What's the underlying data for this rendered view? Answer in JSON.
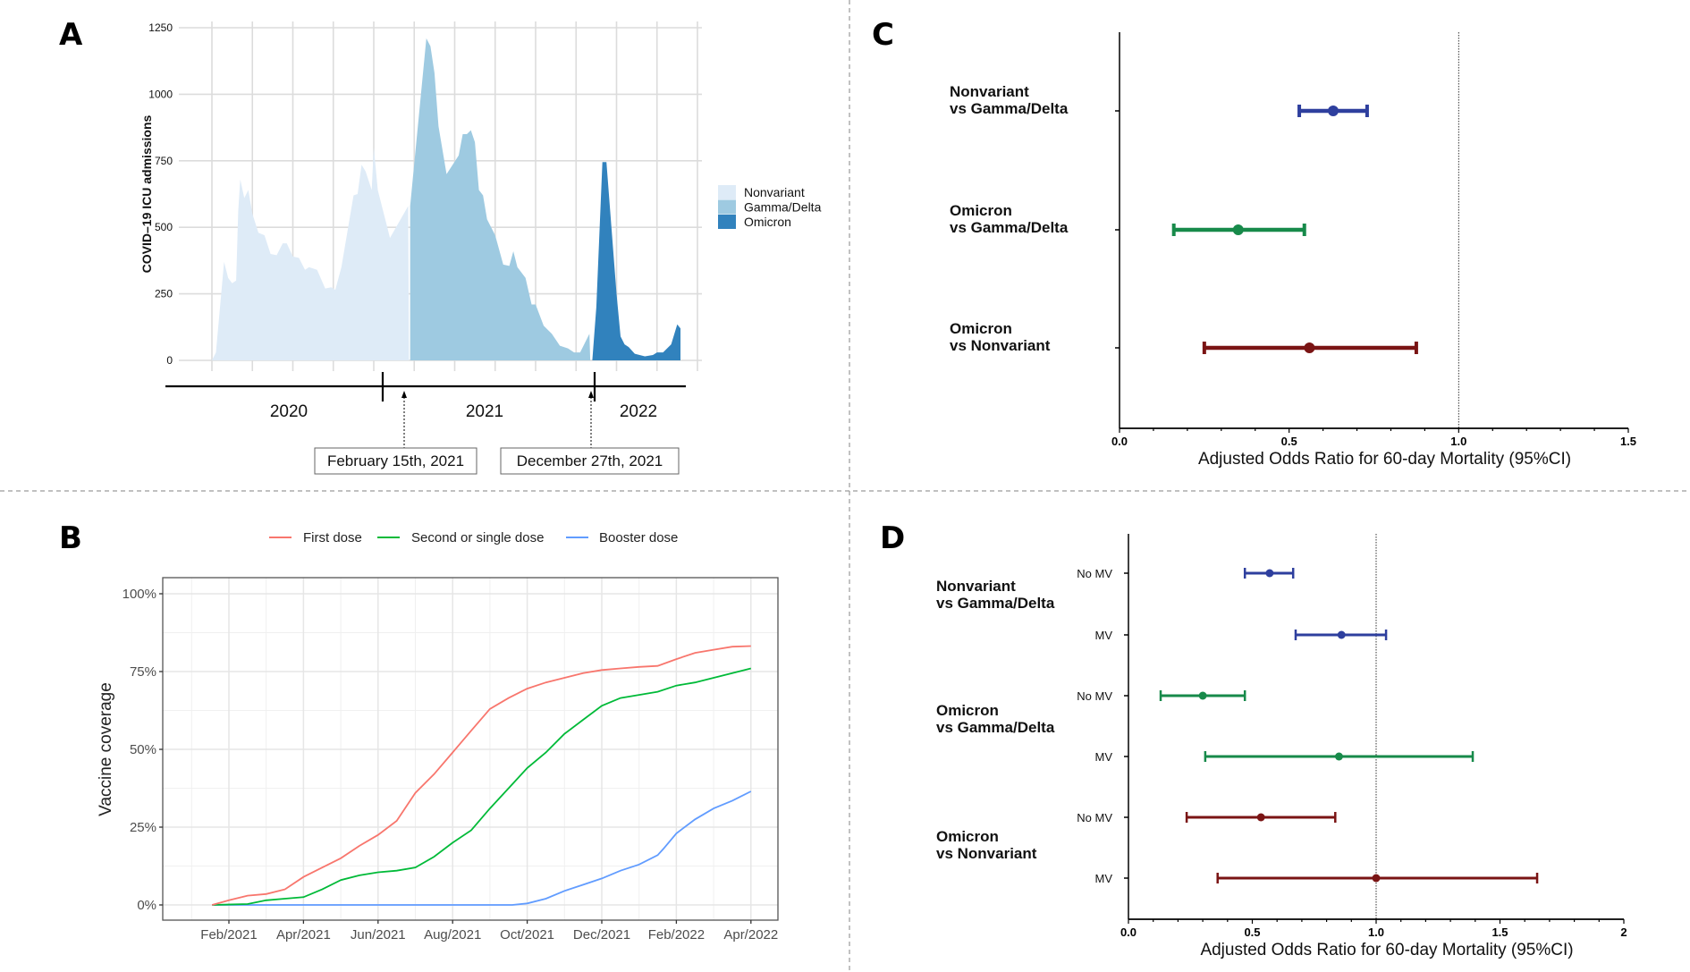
{
  "figure": {
    "dividers": {
      "color": "#9a9a9a"
    }
  },
  "chart_data": [
    {
      "panel": "A",
      "type": "area",
      "title": "",
      "xlabel": "",
      "ylabel": "COVID–19 ICU admissions",
      "ylim": [
        0,
        1250
      ],
      "yticks": [
        0,
        250,
        500,
        750,
        1000,
        1250
      ],
      "x_units": "gridline index (13 vertical gridlines, 0..12)",
      "grid": true,
      "legend_position": "right",
      "series": [
        {
          "name": "Nonvariant",
          "color": "#deebf7",
          "points": [
            [
              0,
              0
            ],
            [
              0.1,
              30
            ],
            [
              0.3,
              370
            ],
            [
              0.4,
              310
            ],
            [
              0.5,
              290
            ],
            [
              0.6,
              300
            ],
            [
              0.65,
              560
            ],
            [
              0.7,
              680
            ],
            [
              0.8,
              610
            ],
            [
              0.9,
              640
            ],
            [
              1.0,
              550
            ],
            [
              1.15,
              480
            ],
            [
              1.3,
              470
            ],
            [
              1.45,
              400
            ],
            [
              1.6,
              395
            ],
            [
              1.75,
              440
            ],
            [
              1.85,
              440
            ],
            [
              2.0,
              390
            ],
            [
              2.15,
              385
            ],
            [
              2.3,
              340
            ],
            [
              2.4,
              350
            ],
            [
              2.6,
              340
            ],
            [
              2.8,
              270
            ],
            [
              2.95,
              275
            ],
            [
              3.05,
              265
            ],
            [
              3.2,
              350
            ],
            [
              3.5,
              620
            ],
            [
              3.6,
              625
            ],
            [
              3.7,
              735
            ],
            [
              3.8,
              710
            ],
            [
              3.95,
              640
            ],
            [
              4.0,
              800
            ],
            [
              4.1,
              640
            ],
            [
              4.3,
              520
            ],
            [
              4.4,
              460
            ],
            [
              4.85,
              580
            ],
            [
              4.87,
              0
            ]
          ]
        },
        {
          "name": "Gamma/Delta",
          "color": "#9ecae1",
          "points": [
            [
              4.9,
              0
            ],
            [
              4.9,
              580
            ],
            [
              5.3,
              1210
            ],
            [
              5.4,
              1180
            ],
            [
              5.5,
              1080
            ],
            [
              5.6,
              880
            ],
            [
              5.8,
              700
            ],
            [
              6.1,
              770
            ],
            [
              6.2,
              850
            ],
            [
              6.3,
              850
            ],
            [
              6.4,
              865
            ],
            [
              6.5,
              820
            ],
            [
              6.6,
              640
            ],
            [
              6.7,
              620
            ],
            [
              6.8,
              530
            ],
            [
              7.0,
              470
            ],
            [
              7.2,
              360
            ],
            [
              7.35,
              355
            ],
            [
              7.45,
              410
            ],
            [
              7.55,
              350
            ],
            [
              7.75,
              310
            ],
            [
              7.9,
              210
            ],
            [
              8.0,
              210
            ],
            [
              8.2,
              130
            ],
            [
              8.4,
              100
            ],
            [
              8.6,
              55
            ],
            [
              8.8,
              45
            ],
            [
              8.95,
              30
            ],
            [
              9.1,
              30
            ],
            [
              9.2,
              60
            ],
            [
              9.33,
              100
            ],
            [
              9.35,
              0
            ]
          ]
        },
        {
          "name": "Omicron",
          "color": "#3182bd",
          "points": [
            [
              9.4,
              0
            ],
            [
              9.5,
              200
            ],
            [
              9.65,
              745
            ],
            [
              9.75,
              745
            ],
            [
              10.0,
              250
            ],
            [
              10.1,
              90
            ],
            [
              10.2,
              60
            ],
            [
              10.3,
              50
            ],
            [
              10.45,
              25
            ],
            [
              10.7,
              15
            ],
            [
              10.9,
              20
            ],
            [
              11.0,
              30
            ],
            [
              11.15,
              30
            ],
            [
              11.35,
              60
            ],
            [
              11.5,
              135
            ],
            [
              11.58,
              120
            ],
            [
              11.58,
              0
            ]
          ]
        }
      ],
      "timeline": {
        "years": [
          "2020",
          "2021",
          "2022"
        ],
        "annotations": [
          "February 15th, 2021",
          "December 27th, 2021"
        ]
      }
    },
    {
      "panel": "B",
      "type": "line",
      "title": "",
      "xlabel": "",
      "ylabel": "Vaccine coverage",
      "ylim": [
        0,
        100
      ],
      "yticks": [
        "0%",
        "25%",
        "50%",
        "75%",
        "100%"
      ],
      "x_tick_labels": [
        "Feb/2021",
        "Apr/2021",
        "Jun/2021",
        "Aug/2021",
        "Oct/2021",
        "Dec/2021",
        "Feb/2022",
        "Apr/2022"
      ],
      "x_units": "months since Feb/2021",
      "grid": true,
      "legend_position": "top",
      "series": [
        {
          "name": "First dose",
          "color": "#f8766d",
          "points": [
            [
              -0.45,
              0
            ],
            [
              0,
              1.5
            ],
            [
              0.5,
              3
            ],
            [
              1,
              3.5
            ],
            [
              1.5,
              5
            ],
            [
              2,
              9
            ],
            [
              2.5,
              12
            ],
            [
              3,
              15
            ],
            [
              3.5,
              19
            ],
            [
              4,
              22.5
            ],
            [
              4.5,
              27
            ],
            [
              5,
              36
            ],
            [
              5.5,
              42
            ],
            [
              6,
              49
            ],
            [
              6.5,
              56
            ],
            [
              7,
              63
            ],
            [
              7.5,
              66.5
            ],
            [
              8,
              69.5
            ],
            [
              8.5,
              71.5
            ],
            [
              9,
              73
            ],
            [
              9.5,
              74.5
            ],
            [
              10,
              75.5
            ],
            [
              10.5,
              76
            ],
            [
              11,
              76.5
            ],
            [
              11.5,
              76.8
            ],
            [
              12,
              79
            ],
            [
              12.5,
              81
            ],
            [
              13,
              82
            ],
            [
              13.5,
              83
            ],
            [
              14,
              83.2
            ]
          ]
        },
        {
          "name": "Second or single dose",
          "color": "#00ba38",
          "points": [
            [
              -0.45,
              0
            ],
            [
              0.5,
              0.3
            ],
            [
              1,
              1.5
            ],
            [
              1.5,
              2
            ],
            [
              2,
              2.5
            ],
            [
              2.5,
              5
            ],
            [
              3,
              8
            ],
            [
              3.5,
              9.5
            ],
            [
              4,
              10.5
            ],
            [
              4.5,
              11
            ],
            [
              5,
              12
            ],
            [
              5.5,
              15.5
            ],
            [
              6,
              20
            ],
            [
              6.5,
              24
            ],
            [
              7,
              31
            ],
            [
              7.5,
              37.5
            ],
            [
              8,
              44
            ],
            [
              8.5,
              49
            ],
            [
              9,
              55
            ],
            [
              9.5,
              59.5
            ],
            [
              10,
              64
            ],
            [
              10.5,
              66.5
            ],
            [
              11,
              67.5
            ],
            [
              11.5,
              68.5
            ],
            [
              12,
              70.5
            ],
            [
              12.5,
              71.5
            ],
            [
              13,
              73
            ],
            [
              13.5,
              74.5
            ],
            [
              14,
              76
            ]
          ]
        },
        {
          "name": "Booster dose",
          "color": "#619cff",
          "points": [
            [
              -0.45,
              0
            ],
            [
              7.6,
              0
            ],
            [
              8,
              0.5
            ],
            [
              8.5,
              2
            ],
            [
              9,
              4.5
            ],
            [
              9.5,
              6.5
            ],
            [
              10,
              8.5
            ],
            [
              10.5,
              11
            ],
            [
              11,
              13
            ],
            [
              11.5,
              16
            ],
            [
              11.65,
              18
            ],
            [
              12,
              23
            ],
            [
              12.5,
              27.5
            ],
            [
              13,
              31
            ],
            [
              13.5,
              33.5
            ],
            [
              14,
              36.5
            ]
          ]
        }
      ]
    },
    {
      "panel": "C",
      "type": "forest",
      "xlabel": "Adjusted Odds Ratio for 60-day Mortality (95%CI)",
      "xlim": [
        0,
        1.5
      ],
      "xticks": [
        "0.0",
        "0.5",
        "1.0",
        "1.5"
      ],
      "reference_line": 1.0,
      "rows": [
        {
          "label_line1": "Nonvariant",
          "label_line2": "vs Gamma/Delta",
          "or": 0.63,
          "low": 0.53,
          "high": 0.73,
          "color": "#2e3f9e"
        },
        {
          "label_line1": "Omicron",
          "label_line2": "vs Gamma/Delta",
          "or": 0.35,
          "low": 0.16,
          "high": 0.545,
          "color": "#178a4a"
        },
        {
          "label_line1": "Omicron",
          "label_line2": "vs Nonvariant",
          "or": 0.56,
          "low": 0.25,
          "high": 0.875,
          "color": "#7a1414"
        }
      ]
    },
    {
      "panel": "D",
      "type": "forest",
      "xlabel": "Adjusted Odds Ratio for 60-day Mortality (95%CI)",
      "xlim": [
        0,
        2
      ],
      "xticks": [
        "0.0",
        "0.5",
        "1.0",
        "1.5",
        "2"
      ],
      "reference_line": 1.0,
      "groups": [
        {
          "label_line1": "Nonvariant",
          "label_line2": "vs Gamma/Delta",
          "color": "#2e3f9e",
          "rows": [
            {
              "label": "No MV",
              "or": 0.57,
              "low": 0.47,
              "high": 0.665
            },
            {
              "label": "MV",
              "or": 0.86,
              "low": 0.675,
              "high": 1.04
            }
          ]
        },
        {
          "label_line1": "Omicron",
          "label_line2": "vs Gamma/Delta",
          "color": "#178a4a",
          "rows": [
            {
              "label": "No MV",
              "or": 0.3,
              "low": 0.13,
              "high": 0.47
            },
            {
              "label": "MV",
              "or": 0.85,
              "low": 0.31,
              "high": 1.39
            }
          ]
        },
        {
          "label_line1": "Omicron",
          "label_line2": "vs Nonvariant",
          "color": "#7a1414",
          "rows": [
            {
              "label": "No MV",
              "or": 0.535,
              "low": 0.235,
              "high": 0.835
            },
            {
              "label": "MV",
              "or": 1.0,
              "low": 0.36,
              "high": 1.65
            }
          ]
        }
      ]
    }
  ],
  "panels": {
    "a": {
      "letter": "A"
    },
    "b": {
      "letter": "B"
    },
    "c": {
      "letter": "C"
    },
    "d": {
      "letter": "D"
    }
  }
}
